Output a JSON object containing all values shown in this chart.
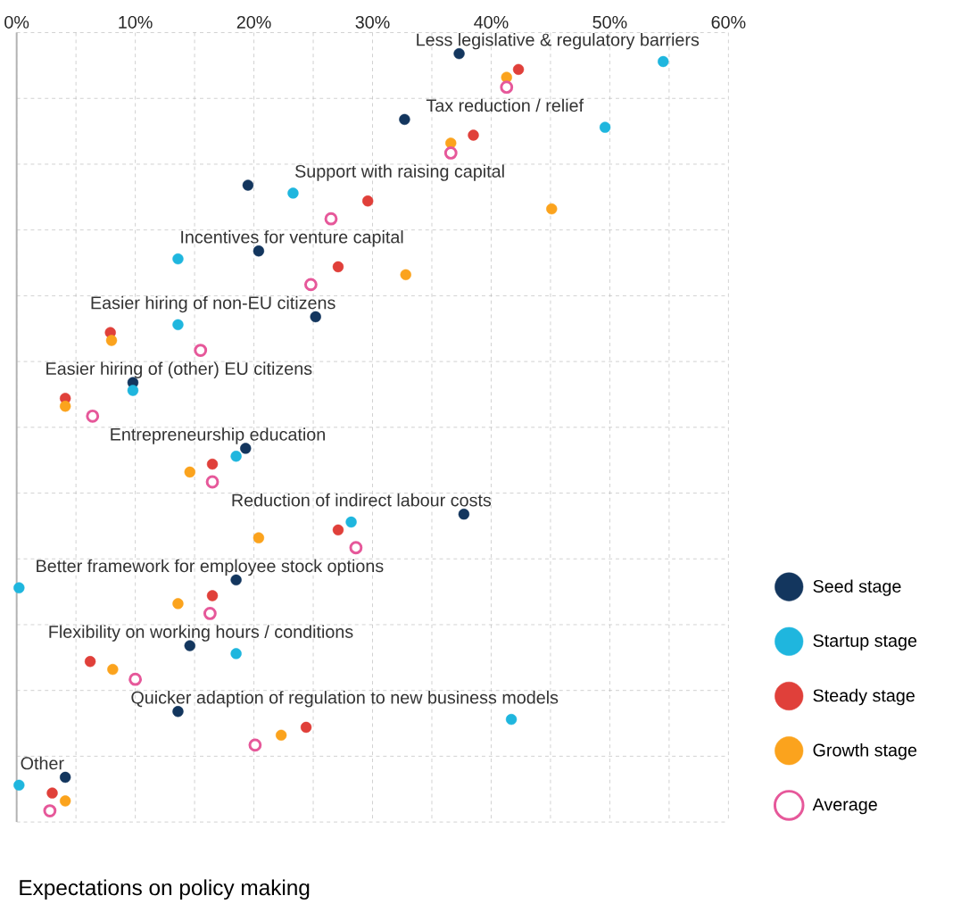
{
  "chart_data": {
    "type": "scatter",
    "orientation": "horizontal",
    "title": "Expectations on policy making",
    "categories": [
      "Less legislative & regulatory barriers",
      "Tax reduction / relief",
      "Support with raising capital",
      "Incentives for venture capital",
      "Easier hiring of non-EU citizens",
      "Easier hiring of (other) EU citizens",
      "Entrepreneurship education",
      "Reduction of indirect labour costs",
      "Better framework for employee stock options",
      "Flexibility on working hours / conditions",
      "Quicker adaption of regulation to new business models",
      "Other"
    ],
    "series": [
      {
        "name": "Seed stage",
        "color": "#13365e",
        "values": [
          37.3,
          32.7,
          19.5,
          20.4,
          25.2,
          9.8,
          19.3,
          37.7,
          18.5,
          14.6,
          13.6,
          4.1
        ]
      },
      {
        "name": "Startup stage",
        "color": "#1fb6de",
        "values": [
          54.5,
          49.6,
          23.3,
          13.6,
          13.6,
          9.8,
          18.5,
          28.2,
          0.2,
          18.5,
          41.7,
          0.2
        ]
      },
      {
        "name": "Steady stage",
        "color": "#e0403a",
        "values": [
          42.3,
          38.5,
          29.6,
          27.1,
          7.9,
          4.1,
          16.5,
          27.1,
          16.5,
          6.2,
          24.4,
          3.0
        ]
      },
      {
        "name": "Growth stage",
        "color": "#fba31d",
        "values": [
          41.3,
          36.6,
          45.1,
          32.8,
          8.0,
          4.1,
          14.6,
          20.4,
          13.6,
          8.1,
          22.3,
          4.1
        ]
      },
      {
        "name": "Average",
        "color": "#e6589a",
        "values": [
          41.3,
          36.6,
          26.5,
          24.8,
          15.5,
          6.4,
          16.5,
          28.6,
          16.3,
          10.0,
          20.1,
          2.8
        ]
      }
    ],
    "xlim": [
      0,
      60
    ],
    "xticks": [
      {
        "value": 0,
        "label": "0%"
      },
      {
        "value": 5,
        "label": null
      },
      {
        "value": 10,
        "label": "10%"
      },
      {
        "value": 15,
        "label": null
      },
      {
        "value": 20,
        "label": "20%"
      },
      {
        "value": 25,
        "label": null
      },
      {
        "value": 30,
        "label": "30%"
      },
      {
        "value": 35,
        "label": null
      },
      {
        "value": 40,
        "label": "40%"
      },
      {
        "value": 45,
        "label": null
      },
      {
        "value": 50,
        "label": "50%"
      },
      {
        "value": 55,
        "label": null
      },
      {
        "value": 60,
        "label": "60%"
      }
    ],
    "grid": true,
    "legend": "right",
    "marker": "circle"
  }
}
